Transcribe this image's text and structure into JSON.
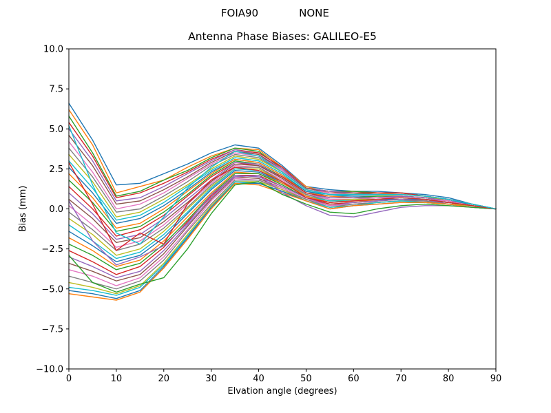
{
  "chart_data": {
    "type": "line",
    "suptitle": {
      "left": "FOIA90",
      "right": "NONE"
    },
    "title": "Antenna Phase Biases: GALILEO-E5",
    "xlabel": "Elvation angle (degrees)",
    "ylabel": "Bias (mm)",
    "xlim": [
      0,
      90
    ],
    "ylim": [
      -10,
      10
    ],
    "xticks": [
      0,
      10,
      20,
      30,
      40,
      50,
      60,
      70,
      80,
      90
    ],
    "xtick_labels": [
      "0",
      "10",
      "20",
      "30",
      "40",
      "50",
      "60",
      "70",
      "80",
      "90"
    ],
    "yticks": [
      -10,
      -7.5,
      -5,
      -2.5,
      0,
      2.5,
      5,
      7.5,
      10
    ],
    "ytick_labels": [
      "−10.0",
      "−7.5",
      "−5.0",
      "−2.5",
      "0.0",
      "2.5",
      "5.0",
      "7.5",
      "10.0"
    ],
    "grid": false,
    "legend": false,
    "x": [
      0,
      5,
      10,
      15,
      20,
      25,
      30,
      35,
      40,
      45,
      50,
      55,
      60,
      65,
      70,
      75,
      80,
      85,
      90
    ],
    "series": [
      {
        "color": "#1f77b4",
        "values": [
          6.6,
          4.3,
          1.5,
          1.6,
          2.2,
          2.8,
          3.5,
          4.0,
          3.8,
          2.7,
          1.4,
          1.2,
          1.1,
          1.1,
          1.0,
          0.9,
          0.7,
          0.3,
          0.0
        ]
      },
      {
        "color": "#ff7f0e",
        "values": [
          6.2,
          4.0,
          1.0,
          1.4,
          1.8,
          2.6,
          3.3,
          3.8,
          3.7,
          2.6,
          1.4,
          1.0,
          1.1,
          1.0,
          0.9,
          0.8,
          0.6,
          0.3,
          0.0
        ]
      },
      {
        "color": "#2ca02c",
        "values": [
          5.8,
          3.5,
          0.8,
          1.1,
          1.8,
          2.4,
          3.2,
          3.8,
          3.6,
          2.5,
          1.3,
          1.1,
          1.1,
          1.0,
          1.0,
          0.8,
          0.6,
          0.3,
          0.0
        ]
      },
      {
        "color": "#d62728",
        "values": [
          5.4,
          3.3,
          0.7,
          1.0,
          1.6,
          2.3,
          3.1,
          3.7,
          3.5,
          2.6,
          1.3,
          1.1,
          1.0,
          1.0,
          1.0,
          0.8,
          0.6,
          0.3,
          0.0
        ]
      },
      {
        "color": "#9467bd",
        "values": [
          5.0,
          3.0,
          0.5,
          0.7,
          1.4,
          2.2,
          3.0,
          3.7,
          3.4,
          2.5,
          1.3,
          1.1,
          1.0,
          0.9,
          0.9,
          0.8,
          0.6,
          0.3,
          0.0
        ]
      },
      {
        "color": "#8c564b",
        "values": [
          4.6,
          2.7,
          0.3,
          0.5,
          1.2,
          2.0,
          2.9,
          3.6,
          3.4,
          2.4,
          1.3,
          1.0,
          1.0,
          0.9,
          0.9,
          0.8,
          0.6,
          0.3,
          0.0
        ]
      },
      {
        "color": "#e377c2",
        "values": [
          4.2,
          2.3,
          0.0,
          0.3,
          1.0,
          1.9,
          2.8,
          3.5,
          3.3,
          2.4,
          1.2,
          1.0,
          0.9,
          0.9,
          0.9,
          0.8,
          0.6,
          0.3,
          0.0
        ]
      },
      {
        "color": "#7f7f7f",
        "values": [
          3.8,
          2.0,
          -0.2,
          0.0,
          0.8,
          1.7,
          2.7,
          3.4,
          3.2,
          2.3,
          1.2,
          0.9,
          0.9,
          0.9,
          0.9,
          0.8,
          0.6,
          0.3,
          0.0
        ]
      },
      {
        "color": "#bcbd22",
        "values": [
          3.4,
          1.7,
          -0.5,
          -0.2,
          0.6,
          1.5,
          2.5,
          3.3,
          3.1,
          2.3,
          1.2,
          0.9,
          0.9,
          0.9,
          0.9,
          0.8,
          0.5,
          0.3,
          0.0
        ]
      },
      {
        "color": "#17becf",
        "values": [
          3.0,
          1.3,
          -0.7,
          -0.4,
          0.4,
          1.4,
          2.4,
          3.2,
          3.0,
          2.2,
          1.1,
          0.9,
          0.8,
          0.8,
          0.8,
          0.7,
          0.5,
          0.3,
          0.0
        ]
      },
      {
        "color": "#1f77b4",
        "values": [
          2.6,
          1.0,
          -0.9,
          -0.6,
          0.2,
          1.2,
          2.3,
          3.1,
          2.9,
          2.1,
          1.1,
          0.8,
          0.8,
          0.8,
          0.8,
          0.7,
          0.5,
          0.3,
          0.0
        ]
      },
      {
        "color": "#ff7f0e",
        "values": [
          2.2,
          0.7,
          -1.2,
          -0.9,
          0.0,
          1.1,
          2.2,
          3.1,
          2.9,
          2.1,
          1.0,
          0.8,
          0.7,
          0.8,
          0.8,
          0.7,
          0.5,
          0.2,
          0.0
        ]
      },
      {
        "color": "#2ca02c",
        "values": [
          1.8,
          0.4,
          -1.4,
          -1.1,
          -0.2,
          0.9,
          2.1,
          3.0,
          2.8,
          2.0,
          1.0,
          0.7,
          0.7,
          0.8,
          0.8,
          0.7,
          0.5,
          0.2,
          0.0
        ]
      },
      {
        "color": "#d62728",
        "values": [
          1.4,
          0.0,
          -1.7,
          -1.3,
          -0.4,
          0.8,
          2.0,
          2.9,
          2.7,
          2.0,
          1.0,
          0.7,
          0.7,
          0.7,
          0.8,
          0.7,
          0.5,
          0.2,
          0.0
        ]
      },
      {
        "color": "#9467bd",
        "values": [
          1.0,
          -0.3,
          -1.9,
          -1.6,
          -0.6,
          0.6,
          1.8,
          2.9,
          2.8,
          1.9,
          0.9,
          0.7,
          0.7,
          0.7,
          0.8,
          0.7,
          0.5,
          0.2,
          0.0
        ]
      },
      {
        "color": "#8c564b",
        "values": [
          0.6,
          -0.6,
          -2.1,
          -1.8,
          -0.8,
          0.4,
          1.7,
          2.8,
          2.7,
          1.9,
          0.9,
          0.6,
          0.6,
          0.7,
          0.7,
          0.6,
          0.5,
          0.2,
          0.0
        ]
      },
      {
        "color": "#e377c2",
        "values": [
          0.2,
          -1.0,
          -2.4,
          -2.0,
          -1.0,
          0.3,
          1.6,
          2.7,
          2.6,
          1.8,
          0.9,
          0.6,
          0.6,
          0.7,
          0.7,
          0.6,
          0.5,
          0.2,
          0.0
        ]
      },
      {
        "color": "#7f7f7f",
        "values": [
          -0.2,
          -1.3,
          -2.6,
          -2.2,
          -1.2,
          0.1,
          1.5,
          2.6,
          2.6,
          1.7,
          0.9,
          0.5,
          0.6,
          0.6,
          0.7,
          0.6,
          0.4,
          0.2,
          0.0
        ]
      },
      {
        "color": "#bcbd22",
        "values": [
          -0.6,
          -1.6,
          -2.9,
          -2.5,
          -1.4,
          0.0,
          1.4,
          2.5,
          2.5,
          1.7,
          0.8,
          0.5,
          0.6,
          0.6,
          0.7,
          0.6,
          0.4,
          0.2,
          0.0
        ]
      },
      {
        "color": "#17becf",
        "values": [
          -1.0,
          -2.0,
          -3.1,
          -2.7,
          -1.6,
          -0.2,
          1.3,
          2.5,
          2.4,
          1.6,
          0.8,
          0.5,
          0.5,
          0.6,
          0.7,
          0.6,
          0.4,
          0.2,
          0.0
        ]
      },
      {
        "color": "#1f77b4",
        "values": [
          -1.4,
          -2.3,
          -3.3,
          -2.9,
          -1.8,
          -0.3,
          1.2,
          2.4,
          2.3,
          1.6,
          0.8,
          0.4,
          0.5,
          0.6,
          0.6,
          0.6,
          0.4,
          0.2,
          0.0
        ]
      },
      {
        "color": "#ff7f0e",
        "values": [
          -1.8,
          -2.6,
          -3.6,
          -3.2,
          -2.0,
          -0.5,
          1.0,
          2.3,
          2.2,
          1.6,
          0.8,
          0.4,
          0.5,
          0.5,
          0.6,
          0.5,
          0.4,
          0.2,
          0.0
        ]
      },
      {
        "color": "#2ca02c",
        "values": [
          -2.2,
          -2.9,
          -3.8,
          -3.4,
          -2.2,
          -0.7,
          0.9,
          2.2,
          2.2,
          1.5,
          0.7,
          0.3,
          0.4,
          0.5,
          0.6,
          0.5,
          0.4,
          0.2,
          0.0
        ]
      },
      {
        "color": "#d62728",
        "values": [
          -2.6,
          -3.3,
          -4.1,
          -3.6,
          -2.4,
          -0.8,
          0.8,
          2.1,
          2.1,
          1.4,
          0.7,
          0.3,
          0.4,
          0.5,
          0.6,
          0.5,
          0.4,
          0.2,
          0.0
        ]
      },
      {
        "color": "#9467bd",
        "values": [
          -3.0,
          -3.6,
          -4.3,
          -3.9,
          -2.6,
          -1.0,
          0.7,
          2.1,
          2.0,
          1.4,
          0.7,
          0.2,
          0.4,
          0.5,
          0.6,
          0.5,
          0.4,
          0.2,
          0.0
        ]
      },
      {
        "color": "#8c564b",
        "values": [
          -3.4,
          -3.9,
          -4.5,
          -4.1,
          -2.8,
          -1.1,
          0.6,
          2.0,
          1.9,
          1.3,
          0.6,
          0.2,
          0.3,
          0.4,
          0.5,
          0.5,
          0.3,
          0.2,
          0.0
        ]
      },
      {
        "color": "#e377c2",
        "values": [
          -3.8,
          -4.2,
          -4.8,
          -4.3,
          -3.0,
          -1.3,
          0.5,
          1.9,
          1.8,
          1.3,
          0.6,
          0.2,
          0.3,
          0.4,
          0.5,
          0.5,
          0.3,
          0.2,
          0.0
        ]
      },
      {
        "color": "#7f7f7f",
        "values": [
          -4.2,
          -4.6,
          -5.0,
          -4.5,
          -3.2,
          -1.4,
          0.3,
          1.8,
          1.8,
          1.2,
          0.6,
          0.1,
          0.3,
          0.4,
          0.5,
          0.5,
          0.3,
          0.2,
          0.0
        ]
      },
      {
        "color": "#bcbd22",
        "values": [
          -4.6,
          -4.9,
          -5.3,
          -4.8,
          -3.4,
          -1.6,
          0.2,
          1.7,
          1.7,
          1.2,
          0.5,
          0.1,
          0.2,
          0.4,
          0.5,
          0.4,
          0.3,
          0.2,
          0.0
        ]
      },
      {
        "color": "#17becf",
        "values": [
          -4.9,
          -5.1,
          -5.4,
          -4.9,
          -3.5,
          -1.7,
          0.1,
          1.7,
          1.6,
          1.1,
          0.5,
          0.1,
          0.2,
          0.4,
          0.5,
          0.4,
          0.3,
          0.1,
          0.0
        ]
      },
      {
        "color": "#1f77b4",
        "values": [
          -5.1,
          -5.3,
          -5.6,
          -5.1,
          -3.6,
          -1.8,
          0.1,
          1.6,
          1.6,
          1.1,
          0.5,
          0.0,
          0.2,
          0.3,
          0.4,
          0.4,
          0.3,
          0.1,
          0.0
        ]
      },
      {
        "color": "#ff7f0e",
        "values": [
          -5.3,
          -5.5,
          -5.7,
          -5.2,
          -3.7,
          -1.9,
          0.0,
          1.6,
          1.5,
          1.0,
          0.5,
          0.0,
          0.2,
          0.3,
          0.4,
          0.4,
          0.3,
          0.1,
          0.0
        ]
      },
      {
        "color": "#9467bd",
        "values": [
          0.5,
          -2.0,
          -3.5,
          -3.0,
          -2.3,
          -0.9,
          0.9,
          2.0,
          2.1,
          1.0,
          0.2,
          -0.4,
          -0.5,
          -0.2,
          0.1,
          0.2,
          0.2,
          0.1,
          0.0
        ]
      },
      {
        "color": "#2ca02c",
        "values": [
          -2.9,
          -4.6,
          -5.2,
          -4.7,
          -4.3,
          -2.5,
          -0.3,
          1.5,
          1.7,
          0.9,
          0.3,
          -0.2,
          -0.3,
          0.0,
          0.2,
          0.3,
          0.2,
          0.1,
          0.0
        ]
      },
      {
        "color": "#d62728",
        "values": [
          2.9,
          0.3,
          -2.6,
          -1.5,
          -2.2,
          0.3,
          1.8,
          2.6,
          2.4,
          1.7,
          0.7,
          0.4,
          0.5,
          0.6,
          0.7,
          0.6,
          0.4,
          0.2,
          0.0
        ]
      },
      {
        "color": "#17becf",
        "values": [
          5.2,
          1.5,
          -1.5,
          -2.2,
          -0.5,
          1.3,
          2.6,
          3.6,
          3.3,
          2.3,
          1.2,
          0.9,
          0.9,
          0.9,
          0.9,
          0.8,
          0.6,
          0.3,
          0.0
        ]
      }
    ]
  }
}
